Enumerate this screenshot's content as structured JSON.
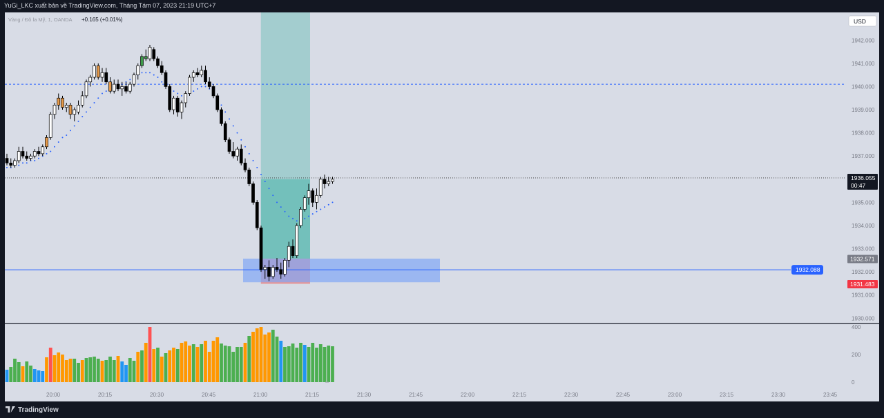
{
  "header": {
    "title": "YuGi_LKC xuất bản về TradingView.com, Tháng Tám 07, 2023 21:19 UTC+7"
  },
  "footer": {
    "brand": "TradingView"
  },
  "symbol": {
    "name": "Vàng / Đô la Mỹ, 1, OANDA",
    "change": "+0.165 (+0.01%)"
  },
  "currency_button": "USD",
  "colors": {
    "background": "#d8dce6",
    "bull_candle": "#ffffff",
    "bear_candle": "#000000",
    "accent_candle": "#e69a4a",
    "green_candle": "#3e9c4a",
    "dots": "#2962ff",
    "hline_blue": "#2962ff",
    "target_zone": "#4db6ac",
    "stop_zone": "#ef5350",
    "demand_zone": "#82a7f5",
    "vol_green": "#4caf50",
    "vol_orange": "#ff9800",
    "vol_blue": "#2196f3",
    "vol_red": "#ff5252"
  },
  "price_axis": {
    "ticks": [
      "1942.000",
      "1941.000",
      "1940.000",
      "1939.000",
      "1938.000",
      "1937.000",
      "1935.000",
      "1934.000",
      "1933.000",
      "1932.000",
      "1931.000",
      "1930.000"
    ],
    "tick_values": [
      1942,
      1941,
      1940,
      1939,
      1938,
      1937,
      1935,
      1934,
      1933,
      1932,
      1931,
      1930
    ],
    "current_price": "1936.055",
    "countdown": "00:47",
    "zone_top_label": "1932.571",
    "stop_label": "1931.483",
    "level_label": "1932.088"
  },
  "volume_axis": {
    "ticks": [
      "400",
      "200",
      "0"
    ],
    "tick_values": [
      400,
      200,
      0
    ]
  },
  "time_axis": {
    "ticks": [
      "20:00",
      "20:15",
      "20:30",
      "20:45",
      "21:00",
      "21:15",
      "21:30",
      "21:45",
      "22:00",
      "22:15",
      "22:30",
      "22:45",
      "23:00",
      "23:15",
      "23:30",
      "23:45"
    ]
  },
  "chart_data": {
    "type": "candlestick",
    "timeframe": "1",
    "start_time": "19:46",
    "candles": [
      [
        1936.9,
        1937.1,
        1936.6,
        1936.7
      ],
      [
        1936.7,
        1936.9,
        1936.5,
        1936.6
      ],
      [
        1936.6,
        1936.9,
        1936.5,
        1936.8
      ],
      [
        1936.8,
        1937.4,
        1936.7,
        1937.2
      ],
      [
        1937.2,
        1937.4,
        1936.9,
        1937.0
      ],
      [
        1937.0,
        1937.2,
        1936.8,
        1936.9
      ],
      [
        1936.9,
        1937.1,
        1936.8,
        1937.0
      ],
      [
        1937.0,
        1937.3,
        1936.9,
        1937.2
      ],
      [
        1937.2,
        1937.4,
        1937.0,
        1937.1
      ],
      [
        1937.1,
        1937.5,
        1937.0,
        1937.4
      ],
      [
        1937.4,
        1937.9,
        1937.3,
        1937.8
      ],
      [
        1937.8,
        1938.9,
        1937.7,
        1938.8
      ],
      [
        1938.8,
        1939.3,
        1938.6,
        1939.2
      ],
      [
        1939.2,
        1939.7,
        1939.0,
        1939.5
      ],
      [
        1939.5,
        1939.6,
        1939.0,
        1939.1
      ],
      [
        1939.1,
        1939.3,
        1938.9,
        1939.2
      ],
      [
        1939.2,
        1939.3,
        1938.6,
        1938.8
      ],
      [
        1938.8,
        1939.1,
        1938.5,
        1939.0
      ],
      [
        1938.9,
        1939.4,
        1938.8,
        1939.2
      ],
      [
        1939.2,
        1939.8,
        1939.1,
        1939.6
      ],
      [
        1939.6,
        1940.3,
        1939.5,
        1940.2
      ],
      [
        1940.2,
        1940.5,
        1940.0,
        1940.4
      ],
      [
        1940.4,
        1941.0,
        1940.3,
        1940.9
      ],
      [
        1940.9,
        1941.0,
        1940.3,
        1940.4
      ],
      [
        1940.4,
        1940.8,
        1940.2,
        1940.6
      ],
      [
        1940.6,
        1940.8,
        1940.1,
        1940.2
      ],
      [
        1940.2,
        1940.4,
        1939.7,
        1939.8
      ],
      [
        1939.8,
        1940.3,
        1939.7,
        1940.1
      ],
      [
        1940.1,
        1940.3,
        1939.8,
        1939.9
      ],
      [
        1939.9,
        1940.2,
        1939.6,
        1940.0
      ],
      [
        1940.0,
        1940.2,
        1939.7,
        1939.8
      ],
      [
        1939.8,
        1940.2,
        1939.7,
        1940.1
      ],
      [
        1940.1,
        1940.6,
        1940.0,
        1940.5
      ],
      [
        1940.5,
        1941.0,
        1940.3,
        1940.9
      ],
      [
        1940.9,
        1941.4,
        1940.8,
        1941.3
      ],
      [
        1941.3,
        1941.6,
        1941.1,
        1941.2
      ],
      [
        1941.2,
        1941.8,
        1941.1,
        1941.7
      ],
      [
        1941.6,
        1941.7,
        1941.1,
        1941.2
      ],
      [
        1941.2,
        1941.3,
        1940.8,
        1940.9
      ],
      [
        1940.9,
        1941.1,
        1940.5,
        1940.6
      ],
      [
        1940.6,
        1940.7,
        1939.9,
        1940.0
      ],
      [
        1940.0,
        1940.1,
        1938.9,
        1939.0
      ],
      [
        1939.0,
        1939.6,
        1938.8,
        1939.5
      ],
      [
        1939.5,
        1939.6,
        1938.7,
        1938.9
      ],
      [
        1938.9,
        1939.4,
        1938.6,
        1939.3
      ],
      [
        1939.3,
        1939.8,
        1939.1,
        1939.7
      ],
      [
        1939.7,
        1940.5,
        1939.6,
        1940.4
      ],
      [
        1940.4,
        1940.7,
        1940.2,
        1940.6
      ],
      [
        1940.6,
        1940.8,
        1940.4,
        1940.5
      ],
      [
        1940.5,
        1940.9,
        1940.4,
        1940.7
      ],
      [
        1940.7,
        1940.9,
        1940.1,
        1940.2
      ],
      [
        1940.2,
        1940.4,
        1939.9,
        1940.0
      ],
      [
        1940.0,
        1940.1,
        1939.5,
        1939.6
      ],
      [
        1939.6,
        1939.7,
        1938.9,
        1939.0
      ],
      [
        1939.0,
        1939.1,
        1938.3,
        1938.4
      ],
      [
        1938.4,
        1938.5,
        1937.6,
        1937.7
      ],
      [
        1937.7,
        1937.8,
        1937.1,
        1937.2
      ],
      [
        1937.2,
        1937.6,
        1936.9,
        1937.0
      ],
      [
        1937.0,
        1937.4,
        1936.8,
        1937.3
      ],
      [
        1937.3,
        1937.5,
        1936.6,
        1936.7
      ],
      [
        1936.7,
        1936.9,
        1936.3,
        1936.4
      ],
      [
        1936.4,
        1936.5,
        1935.7,
        1935.8
      ],
      [
        1935.8,
        1935.9,
        1934.9,
        1935.0
      ],
      [
        1935.0,
        1935.1,
        1933.8,
        1933.9
      ],
      [
        1933.9,
        1934.0,
        1932.0,
        1932.1
      ],
      [
        1932.1,
        1932.3,
        1931.7,
        1932.2
      ],
      [
        1932.2,
        1932.5,
        1931.6,
        1931.8
      ],
      [
        1931.8,
        1932.3,
        1931.7,
        1932.2
      ],
      [
        1932.2,
        1932.6,
        1932.0,
        1932.1
      ],
      [
        1932.1,
        1932.4,
        1931.7,
        1931.9
      ],
      [
        1931.9,
        1932.6,
        1931.8,
        1932.5
      ],
      [
        1932.5,
        1933.3,
        1932.2,
        1933.1
      ],
      [
        1933.1,
        1933.4,
        1932.6,
        1932.7
      ],
      [
        1932.7,
        1934.1,
        1932.6,
        1934.0
      ],
      [
        1934.0,
        1934.8,
        1933.9,
        1934.7
      ],
      [
        1934.7,
        1935.3,
        1934.6,
        1935.2
      ],
      [
        1935.2,
        1935.8,
        1934.9,
        1935.5
      ],
      [
        1935.5,
        1935.6,
        1934.8,
        1935.0
      ],
      [
        1935.0,
        1935.6,
        1934.7,
        1935.3
      ],
      [
        1935.3,
        1936.1,
        1935.2,
        1936.0
      ],
      [
        1936.0,
        1936.2,
        1935.6,
        1935.8
      ],
      [
        1935.8,
        1936.1,
        1935.7,
        1935.9
      ],
      [
        1935.9,
        1936.1,
        1935.8,
        1936.0
      ]
    ],
    "accent_candles": [
      10,
      13,
      14,
      16,
      23,
      26
    ],
    "green_candles": [
      34,
      35
    ],
    "volume": [
      90,
      110,
      170,
      145,
      115,
      150,
      120,
      95,
      85,
      80,
      180,
      250,
      195,
      215,
      200,
      160,
      170,
      170,
      140,
      160,
      175,
      180,
      185,
      170,
      155,
      160,
      185,
      160,
      190,
      150,
      125,
      175,
      155,
      220,
      230,
      285,
      400,
      240,
      250,
      185,
      210,
      230,
      250,
      240,
      285,
      295,
      265,
      275,
      255,
      275,
      300,
      220,
      300,
      325,
      280,
      265,
      260,
      220,
      255,
      255,
      285,
      335,
      365,
      390,
      400,
      345,
      360,
      380,
      330,
      300,
      255,
      260,
      280,
      250,
      285,
      270,
      255,
      285,
      250,
      275,
      255,
      265,
      260
    ],
    "volume_colors": [
      "b",
      "g",
      "g",
      "g",
      "o",
      "g",
      "g",
      "b",
      "b",
      "b",
      "o",
      "r",
      "o",
      "o",
      "o",
      "o",
      "o",
      "g",
      "g",
      "o",
      "g",
      "g",
      "g",
      "g",
      "o",
      "g",
      "g",
      "g",
      "o",
      "b",
      "b",
      "g",
      "g",
      "o",
      "g",
      "o",
      "r",
      "o",
      "g",
      "o",
      "g",
      "o",
      "o",
      "g",
      "o",
      "o",
      "o",
      "g",
      "o",
      "g",
      "o",
      "o",
      "o",
      "o",
      "g",
      "g",
      "g",
      "g",
      "g",
      "g",
      "o",
      "g",
      "o",
      "o",
      "o",
      "o",
      "o",
      "g",
      "g",
      "b",
      "g",
      "g",
      "g",
      "g",
      "g",
      "b",
      "g",
      "g",
      "g",
      "g",
      "g",
      "g",
      "g"
    ],
    "dots_values": [
      1936.5,
      1936.5,
      1936.6,
      1936.6,
      1936.7,
      1936.7,
      1936.8,
      1936.8,
      1936.9,
      1937.0,
      1937.1,
      1937.2,
      1937.4,
      1937.6,
      1937.8,
      1937.9,
      1938.1,
      1938.3,
      1938.5,
      1938.7,
      1938.9,
      1939.1,
      1939.3,
      1939.5,
      1939.7,
      1939.8,
      1939.9,
      1940.0,
      1940.0,
      1940.1,
      1940.2,
      1940.3,
      1940.4,
      1940.5,
      1940.6,
      1940.6,
      1940.6,
      1940.5,
      1940.4,
      1940.2,
      1940.1,
      1939.9,
      1939.8,
      1939.7,
      1939.6,
      1939.6,
      1939.7,
      1939.8,
      1939.9,
      1940.0,
      1940.0,
      1939.9,
      1939.7,
      1939.5,
      1939.2,
      1938.9,
      1938.6,
      1938.3,
      1938.0,
      1937.7,
      1937.4,
      1937.1,
      1936.8,
      1936.5,
      1936.2,
      1935.9,
      1935.6,
      1935.3,
      1935.0,
      1934.8,
      1934.6,
      1934.4,
      1934.3,
      1934.2,
      1934.2,
      1934.3,
      1934.4,
      1934.5,
      1934.6,
      1934.7,
      1934.8,
      1934.9,
      1935.0
    ],
    "horizontal_levels": {
      "dashed": 1940.1,
      "solid": 1932.088,
      "current": 1936.055
    },
    "price_range": [
      1929.8,
      1943.2
    ],
    "volume_range": [
      0,
      420
    ],
    "position": {
      "entry": 1932.571,
      "stop": 1931.483,
      "target": 1936.0,
      "start_index": 65,
      "end_index": 76
    },
    "demand_zone": {
      "top": 1932.571,
      "bottom": 1931.55,
      "start_index": 60,
      "end_time": "21:52"
    }
  }
}
